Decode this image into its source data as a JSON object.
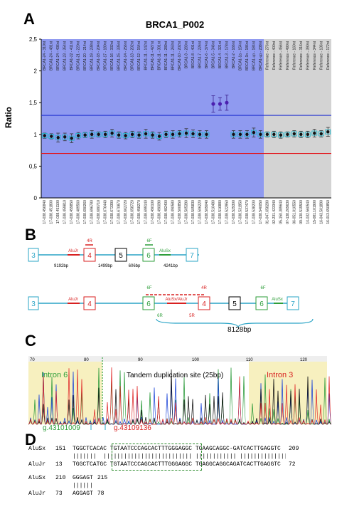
{
  "panel_letters": {
    "a": "A",
    "b": "B",
    "c": "C",
    "d": "D"
  },
  "colors": {
    "probe_bg": "#8f9af0",
    "ref_bg": "#d3d3d3",
    "upper_line": "#1f2fd0",
    "lower_line": "#e3141a",
    "exon_blue": "#2aa4c6",
    "exon_red": "#d82020",
    "exon_green": "#2e9e3a",
    "dup_box": "#2e8b2e",
    "intron_band": "#f7f0bf"
  },
  "chart_data": {
    "type": "scatter",
    "title": "BRCA1_P002",
    "xlabel": "",
    "ylabel": "Ratio",
    "ylim": [
      0,
      2.5
    ],
    "yticks": [
      "0",
      "0,5",
      "1",
      "1,5",
      "2",
      "2,5"
    ],
    "threshold_upper": 1.3,
    "threshold_lower": 0.7,
    "probe_labels": [
      "BRCA1-24 - 310nt",
      "BRCA1-24 - 481nt",
      "BRCA1-24 - 436nt",
      "BRCA1-23 - 354nt",
      "BRCA1-22 - 411nt",
      "BRCA1-21 - 220nt",
      "BRCA1-20 - 214nt",
      "BRCA1-19 - 238nt",
      "BRCA1-18 - 204nt",
      "BRCA1-17 - 180nt",
      "BRCA1-16 - 332nt",
      "BRCA1-15 - 335nt",
      "BRCA1-14 - 256nt",
      "BRCA1-13 - 202nt",
      "BRCA1-12 - 154nt",
      "BRCA1-11 - 142nt",
      "BRCA1-11 - 427nt",
      "BRCA1-11 - 301nt",
      "BRCA1-11 - 289nt",
      "BRCA1-11 - 263nt",
      "BRCA1-10 - 202nt",
      "BRCA1-9 - 283nt",
      "BRCA1-8 - 401nt",
      "BRCA1-7 - 226nt",
      "BRCA1-6 - 374nt",
      "BRCA1-5 - 346nt",
      "BRCA1-4 - 321nt",
      "BRCA1-3 - 178nt",
      "BRCA1-2 - 166nt",
      "BRCA1-1a - 154nt",
      "BRCA1-1b - 186nt",
      "BRCA1-up - 184nt",
      "BRCA1-up - 238nt",
      "Reference - 276nt",
      "Reference - 400nt",
      "Reference - 456nt",
      "Reference - 490nt",
      "Reference - 160nt",
      "Reference - 316nt",
      "Reference - 390nt",
      "Reference - 344nt",
      "Reference - 136nt",
      "Reference - 172nt"
    ],
    "locus_labels": [
      "17-038.456840",
      "17-038.451800",
      "17-038.451100",
      "17-038.459810",
      "17-038.459850",
      "17-038.489560",
      "17-038.690260",
      "17-038.696780",
      "17-038.680710",
      "17-038.676440",
      "17-038.673390",
      "17-038.670870",
      "17-038.662720",
      "17-038.658720",
      "17-038.458270",
      "17-038.699140",
      "17-038.490100",
      "17-038.490090",
      "17-038.482400",
      "17-038.490580",
      "17-038.500850",
      "17-038.505390",
      "17-038.505830",
      "17-038.506220",
      "17-038.509040",
      "17-038.510480",
      "17-038.516880",
      "17-038.522950",
      "17-038.529300",
      "17-038.531950",
      "17-038.537470",
      "17-038.538200",
      "17-038.540050",
      "01-047.658280",
      "02-231.423340",
      "05-150.389640",
      "07-138.269630",
      "06-051.010550",
      "09-130.519500",
      "14-032.560540",
      "15-081.101900",
      "16-043.501890",
      "16-013.650850"
    ],
    "values": [
      0.98,
      0.97,
      0.95,
      0.96,
      0.94,
      0.98,
      0.99,
      1.0,
      1.0,
      1.0,
      1.02,
      0.99,
      0.98,
      1.0,
      0.99,
      1.01,
      0.99,
      0.97,
      1.0,
      1.0,
      1.01,
      1.02,
      1.01,
      1.0,
      1.0,
      1.48,
      1.48,
      1.5,
      1.0,
      1.0,
      1.0,
      1.03,
      1.0,
      1.0,
      1.0,
      0.99,
      1.0,
      1.01,
      1.0,
      1.0,
      1.02,
      1.01,
      1.04
    ],
    "errors": [
      0.04,
      0.04,
      0.07,
      0.06,
      0.07,
      0.05,
      0.04,
      0.06,
      0.04,
      0.05,
      0.06,
      0.05,
      0.05,
      0.05,
      0.05,
      0.07,
      0.05,
      0.06,
      0.05,
      0.06,
      0.05,
      0.07,
      0.06,
      0.06,
      0.06,
      0.13,
      0.1,
      0.12,
      0.06,
      0.06,
      0.06,
      0.07,
      0.06,
      0.04,
      0.05,
      0.05,
      0.04,
      0.05,
      0.05,
      0.05,
      0.06,
      0.05,
      0.07
    ],
    "reference_start_index": 33,
    "highlight_indices": [
      25,
      26,
      27
    ]
  },
  "diagram_b": {
    "top_row": {
      "exons": [
        "3",
        "4",
        "5",
        "6",
        "7"
      ],
      "alu_labels": [
        "AluJr",
        "AluSx"
      ],
      "distances": [
        "9192bp",
        "1499bp",
        "606bp",
        "4241bp"
      ],
      "primer_left": "4R",
      "primer_right": "6F"
    },
    "bottom_row": {
      "exons": [
        "3",
        "4",
        "6",
        "4",
        "5",
        "6",
        "7"
      ],
      "alu_labels": [
        "AluJr",
        "AluSx/AluJr",
        "AluSx"
      ],
      "primers": [
        "6F",
        "4R",
        "6F",
        "6R",
        "5R"
      ],
      "dup_length": "8128bp"
    }
  },
  "chromatogram_c": {
    "ruler": [
      "70",
      "80",
      "90",
      "100",
      "110",
      "120"
    ],
    "intron6_label": "Intron 6",
    "dup_label": "Tandem duplication site (25bp)",
    "intron3_label": "Intron 3",
    "coord_left": "g.43101009",
    "coord_right": "g.43109136"
  },
  "alignment_d": {
    "rows": [
      {
        "name": "AluSx",
        "start": "151",
        "seq": "TGGCTCACAC TGTAATCCCAGCACTTTGGGAGGC TGAAGCAGGC-GATCACTTGAGGTC",
        "end": "209"
      },
      {
        "name": "match",
        "start": "",
        "seq": "|||||||  |||||||||||||||||||||||||| |||||||||||| |||||||||||||||",
        "end": ""
      },
      {
        "name": "AluJr",
        "start": "13",
        "seq": "TGGCTCATGC TGTAATCCCAGCACTTTGGGAGGC TGAGGCAGGCAGATCACTTGAGGTC",
        "end": "72"
      },
      {
        "name": "AluSx",
        "start": "210",
        "seq": "GGGAGT",
        "end": "215"
      },
      {
        "name": "match",
        "start": "",
        "seq": "||||||",
        "end": ""
      },
      {
        "name": "AluJr",
        "start": "73",
        "seq": "AGGAGT",
        "end": "78"
      }
    ]
  }
}
